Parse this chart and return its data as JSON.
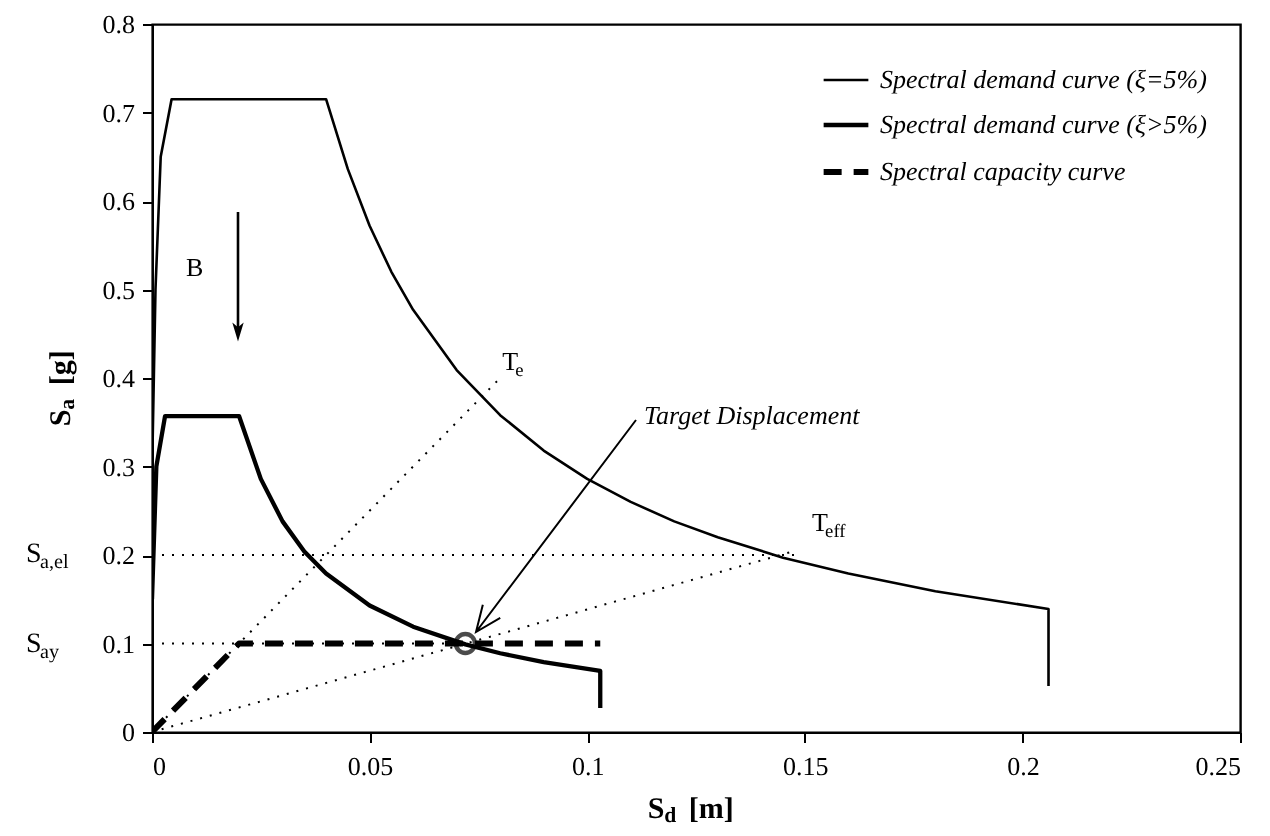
{
  "chart_data": {
    "type": "line",
    "xlabel": "S$_{d}$ [m]",
    "ylabel": "S$_{a}$ [g]",
    "xlim": [
      0,
      0.25
    ],
    "ylim": [
      0,
      0.8
    ],
    "xticks": [
      0,
      0.05,
      0.1,
      0.15,
      0.2,
      0.25
    ],
    "yticks": [
      0,
      0.1,
      0.2,
      0.3,
      0.4,
      0.5,
      0.6,
      0.7,
      0.8
    ],
    "grid": false,
    "legend": "top right",
    "series": [
      {
        "name": "Spectral demand curve (ξ=5%)",
        "color": "#000000",
        "line_style": "solid",
        "x": [
          0,
          0.0008,
          0.002,
          0.0045,
          0.04,
          0.045,
          0.05,
          0.055,
          0.06,
          0.07,
          0.08,
          0.09,
          0.1,
          0.11,
          0.12,
          0.13,
          0.145,
          0.16,
          0.18,
          0.206,
          0.206
        ],
        "values": [
          0.29,
          0.5,
          0.65,
          0.715,
          0.715,
          0.636,
          0.572,
          0.52,
          0.477,
          0.409,
          0.358,
          0.318,
          0.286,
          0.26,
          0.238,
          0.22,
          0.197,
          0.179,
          0.159,
          0.139,
          0.052
        ]
      },
      {
        "name": "Spectral demand curve (ξ>5%)",
        "color": "#000000",
        "line_style": "solid",
        "x": [
          0,
          0.001,
          0.003,
          0.02,
          0.025,
          0.03,
          0.035,
          0.04,
          0.05,
          0.06,
          0.072,
          0.08,
          0.09,
          0.103,
          0.103
        ],
        "values": [
          0.15,
          0.3,
          0.357,
          0.357,
          0.286,
          0.238,
          0.204,
          0.179,
          0.143,
          0.119,
          0.099,
          0.089,
          0.079,
          0.069,
          0.027
        ]
      },
      {
        "name": "Spectral capacity curve",
        "color": "#000000",
        "line_style": "dashed",
        "x": [
          0,
          0.02,
          0.103
        ],
        "values": [
          0,
          0.1,
          0.1
        ]
      },
      {
        "color": "#000000",
        "line_style": "dotted",
        "x": [
          0,
          0.08
        ],
        "values": [
          0,
          0.4
        ]
      },
      {
        "color": "#000000",
        "line_style": "dotted",
        "x": [
          0,
          0.148
        ],
        "values": [
          0,
          0.205
        ]
      },
      {
        "color": "#000000",
        "line_style": "dotted",
        "x": [
          0,
          0.148
        ],
        "values": [
          0.2,
          0.2
        ]
      },
      {
        "color": "#000000",
        "line_style": "dotted",
        "x": [
          0,
          0.072
        ],
        "values": [
          0.1,
          0.1
        ]
      },
      {
        "type": "scatter",
        "color": "#000000",
        "marker": "circle",
        "x": [
          0.072
        ],
        "values": [
          0.1
        ]
      }
    ],
    "annotations": [
      "S$_{a,el}$",
      "S$_{ay}$",
      "B",
      {
        "text": "T$_{e}$",
        "x": 0.08,
        "y": 0.4
      },
      {
        "text": "T$_{eff}$",
        "x": 0.148,
        "y": 0.205
      },
      "Target Displacement"
    ]
  }
}
